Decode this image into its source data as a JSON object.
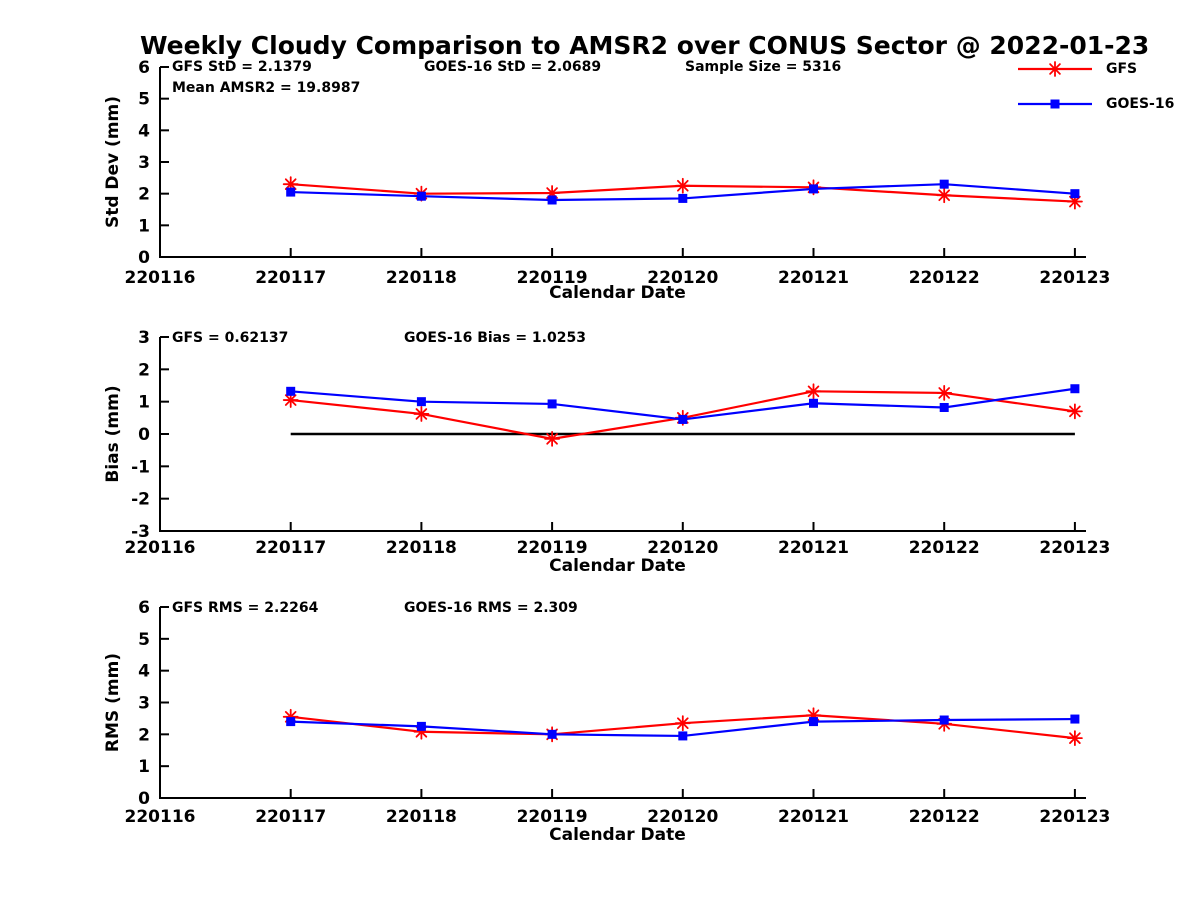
{
  "title": "Weekly Cloudy Comparison to AMSR2 over CONUS Sector @ 2022-01-23",
  "legend": {
    "items": [
      {
        "label": "GFS",
        "color": "#ff0000",
        "marker": "star"
      },
      {
        "label": "GOES-16",
        "color": "#0000ff",
        "marker": "square"
      }
    ]
  },
  "colors": {
    "gfs": "#ff0000",
    "goes16": "#0000ff",
    "axis": "#000000",
    "zero_line": "#000000"
  },
  "chart_data": [
    {
      "id": "stddev",
      "type": "line",
      "ylabel": "Std Dev (mm)",
      "xlabel": "Calendar Date",
      "ylim": [
        0,
        6
      ],
      "ytick_step": 1,
      "grid": false,
      "legend_position": "top-right",
      "x_ticks": [
        "220116",
        "220117",
        "220118",
        "220119",
        "220120",
        "220121",
        "220122",
        "220123"
      ],
      "annotations": [
        {
          "text": "GFS StD = 2.1379",
          "row": 0,
          "col": "left"
        },
        {
          "text": "GOES-16 StD = 2.0689",
          "row": 0,
          "col": "center"
        },
        {
          "text": "Sample Size = 5316",
          "row": 0,
          "col": "right"
        },
        {
          "text": "Mean AMSR2 = 19.8987",
          "row": 1,
          "col": "left"
        }
      ],
      "zero_line": false,
      "series": [
        {
          "name": "GFS",
          "marker": "star",
          "color": "#ff0000",
          "x": [
            "220117",
            "220118",
            "220119",
            "220120",
            "220121",
            "220122",
            "220123"
          ],
          "values": [
            2.3,
            2.0,
            2.02,
            2.25,
            2.2,
            1.95,
            1.75
          ]
        },
        {
          "name": "GOES-16",
          "marker": "square",
          "color": "#0000ff",
          "x": [
            "220117",
            "220118",
            "220119",
            "220120",
            "220121",
            "220122",
            "220123"
          ],
          "values": [
            2.05,
            1.92,
            1.8,
            1.85,
            2.15,
            2.3,
            2.0
          ]
        }
      ]
    },
    {
      "id": "bias",
      "type": "line",
      "ylabel": "Bias (mm)",
      "xlabel": "Calendar Date",
      "ylim": [
        -3,
        3
      ],
      "ytick_step": 1,
      "grid": false,
      "x_ticks": [
        "220116",
        "220117",
        "220118",
        "220119",
        "220120",
        "220121",
        "220122",
        "220123"
      ],
      "annotations": [
        {
          "text": "GFS = 0.62137",
          "row": 0,
          "col": "left"
        },
        {
          "text": "GOES-16 Bias  = 1.0253",
          "row": 0,
          "col": "center"
        }
      ],
      "zero_line": true,
      "series": [
        {
          "name": "GFS",
          "marker": "star",
          "color": "#ff0000",
          "x": [
            "220117",
            "220118",
            "220119",
            "220120",
            "220121",
            "220122",
            "220123"
          ],
          "values": [
            1.05,
            0.62,
            -0.15,
            0.5,
            1.32,
            1.27,
            0.7
          ]
        },
        {
          "name": "GOES-16",
          "marker": "square",
          "color": "#0000ff",
          "x": [
            "220117",
            "220118",
            "220119",
            "220120",
            "220121",
            "220122",
            "220123"
          ],
          "values": [
            1.32,
            1.0,
            0.93,
            0.45,
            0.95,
            0.82,
            1.4
          ]
        }
      ]
    },
    {
      "id": "rms",
      "type": "line",
      "ylabel": "RMS (mm)",
      "xlabel": "Calendar Date",
      "ylim": [
        0,
        6
      ],
      "ytick_step": 1,
      "grid": false,
      "x_ticks": [
        "220116",
        "220117",
        "220118",
        "220119",
        "220120",
        "220121",
        "220122",
        "220123"
      ],
      "annotations": [
        {
          "text": "GFS RMS = 2.2264",
          "row": 0,
          "col": "left"
        },
        {
          "text": "GOES-16 RMS = 2.309",
          "row": 0,
          "col": "center"
        }
      ],
      "zero_line": false,
      "series": [
        {
          "name": "GFS",
          "marker": "star",
          "color": "#ff0000",
          "x": [
            "220117",
            "220118",
            "220119",
            "220120",
            "220121",
            "220122",
            "220123"
          ],
          "values": [
            2.55,
            2.08,
            2.0,
            2.35,
            2.6,
            2.33,
            1.88
          ]
        },
        {
          "name": "GOES-16",
          "marker": "square",
          "color": "#0000ff",
          "x": [
            "220117",
            "220118",
            "220119",
            "220120",
            "220121",
            "220122",
            "220123"
          ],
          "values": [
            2.4,
            2.25,
            2.0,
            1.95,
            2.4,
            2.45,
            2.48
          ]
        }
      ]
    }
  ]
}
